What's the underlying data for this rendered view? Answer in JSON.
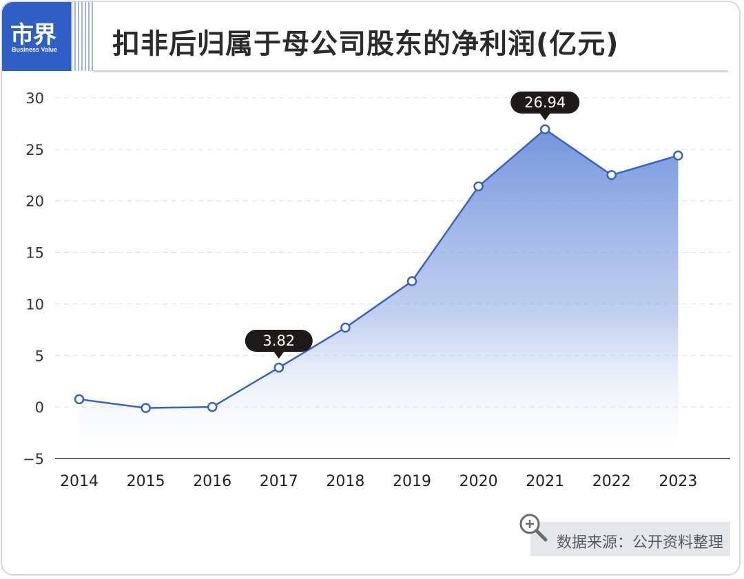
{
  "logo": {
    "main": "市界",
    "sub": "Business Value"
  },
  "title": "扣非后归属于母公司股东的净利润(亿元)",
  "source": "数据来源：公开资料整理",
  "colors": {
    "accent": "#2f5fc6",
    "line": "#3562c4",
    "label_bg": "#1f1a1a"
  },
  "chart_data": {
    "type": "area",
    "categories": [
      "2014",
      "2015",
      "2016",
      "2017",
      "2018",
      "2019",
      "2020",
      "2021",
      "2022",
      "2023"
    ],
    "values": [
      0.75,
      -0.1,
      0.0,
      3.82,
      7.7,
      12.2,
      21.4,
      26.94,
      22.5,
      24.4
    ],
    "ylim": [
      -5,
      30
    ],
    "yticks": [
      "30",
      "25",
      "20",
      "15",
      "10",
      "5",
      "0",
      "−5"
    ],
    "ytick_values": [
      30,
      25,
      20,
      15,
      10,
      5,
      0,
      -5
    ],
    "annotations": [
      {
        "category": "2017",
        "label": "3.82"
      },
      {
        "category": "2021",
        "label": "26.94"
      }
    ],
    "grid": true
  }
}
